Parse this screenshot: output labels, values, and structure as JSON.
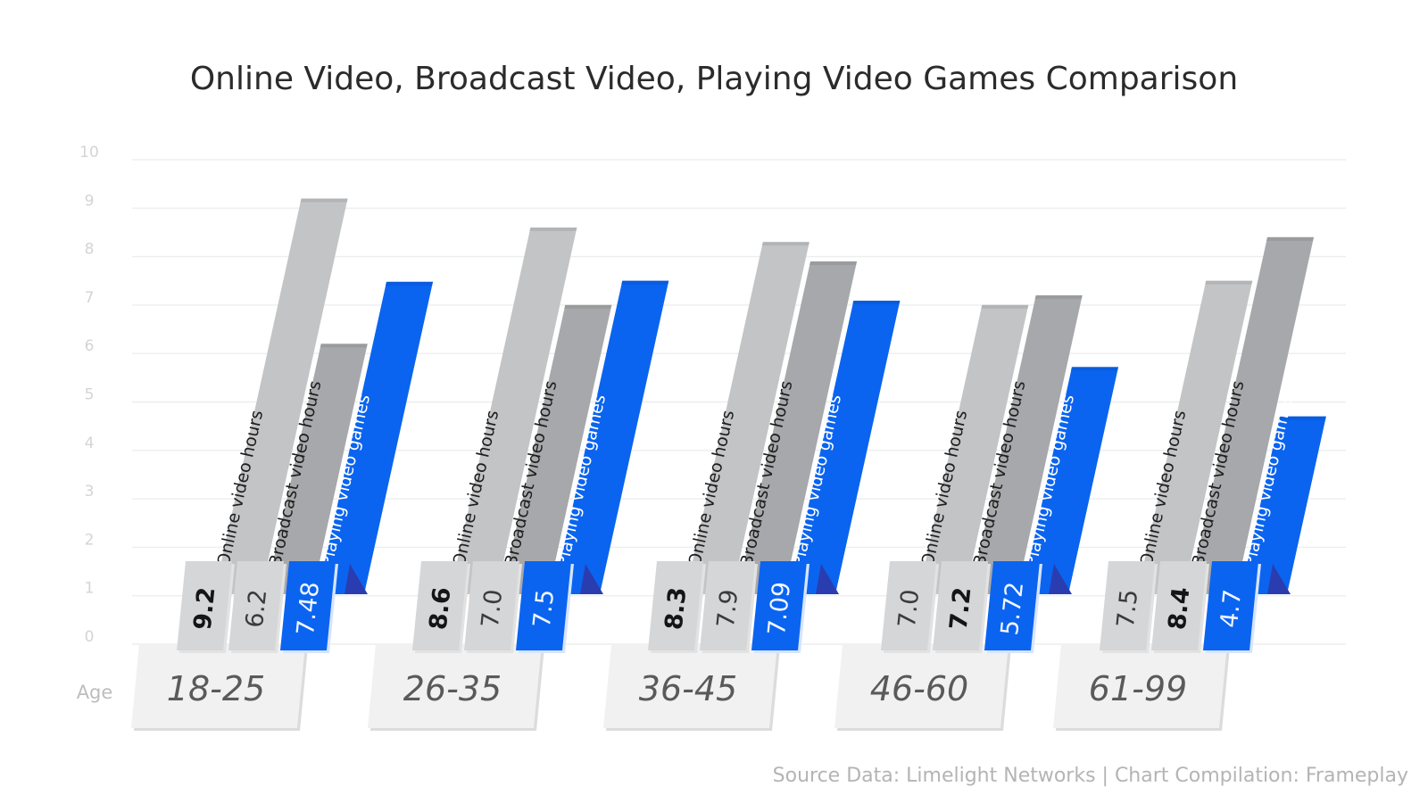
{
  "chart_data": {
    "type": "bar",
    "title": "Online Video, Broadcast Video, Playing Video Games Comparison",
    "xlabel": "Age",
    "ylabel": "",
    "ylim": [
      0,
      10
    ],
    "yticks": [
      "0",
      "1",
      "2",
      "3",
      "4",
      "5",
      "6",
      "7",
      "8",
      "9",
      "10"
    ],
    "grid": true,
    "categories": [
      "18-25",
      "26-35",
      "36-45",
      "46-60",
      "61-99"
    ],
    "series": [
      {
        "name": "Online video hours",
        "color": "#c3c4c6",
        "values": [
          9.2,
          8.6,
          8.3,
          7.0,
          7.5
        ],
        "labels": [
          "9.2",
          "8.6",
          "8.3",
          "7.0",
          "7.5"
        ],
        "bold": [
          true,
          true,
          true,
          false,
          false
        ]
      },
      {
        "name": "Broadcast video hours",
        "color": "#a7a8ab",
        "values": [
          6.2,
          7.0,
          7.9,
          7.2,
          8.4
        ],
        "labels": [
          "6.2",
          "7.0",
          "7.9",
          "7.2",
          "8.4"
        ],
        "bold": [
          false,
          false,
          false,
          true,
          true
        ]
      },
      {
        "name": "Playing video games",
        "color": "#0a64f0",
        "values": [
          7.48,
          7.5,
          7.09,
          5.72,
          4.7
        ],
        "labels": [
          "7.48",
          "7.5",
          "7.09",
          "5.72",
          "4.7"
        ],
        "bold": [
          false,
          false,
          false,
          false,
          false
        ]
      }
    ],
    "source": "Source Data: Limelight Networks | Chart Compilation: Frameplay"
  }
}
